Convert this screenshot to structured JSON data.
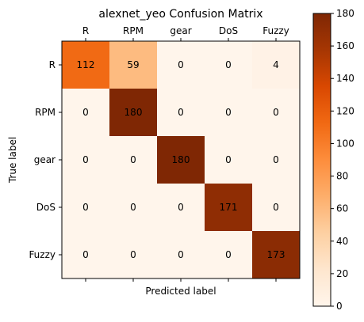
{
  "chart_data": {
    "type": "heatmap",
    "title": "alexnet_yeo Confusion Matrix",
    "xlabel": "Predicted label",
    "ylabel": "True label",
    "x_categories": [
      "R",
      "RPM",
      "gear",
      "DoS",
      "Fuzzy"
    ],
    "y_categories": [
      "R",
      "RPM",
      "gear",
      "DoS",
      "Fuzzy"
    ],
    "matrix": [
      [
        112,
        59,
        0,
        0,
        4
      ],
      [
        0,
        180,
        0,
        0,
        0
      ],
      [
        0,
        0,
        180,
        0,
        0
      ],
      [
        0,
        0,
        0,
        171,
        0
      ],
      [
        0,
        0,
        0,
        0,
        173
      ]
    ],
    "colormap": "Oranges",
    "colormap_stops": [
      "#fff5eb",
      "#fee6ce",
      "#fdd0a2",
      "#fdae6b",
      "#fd8d3c",
      "#f16913",
      "#d94801",
      "#a63603",
      "#7f2704"
    ],
    "vmin": 0,
    "vmax": 180,
    "colorbar_ticks": [
      0,
      20,
      40,
      60,
      80,
      100,
      120,
      140,
      160,
      180
    ],
    "x_ticks_position": "top",
    "grid": false
  }
}
